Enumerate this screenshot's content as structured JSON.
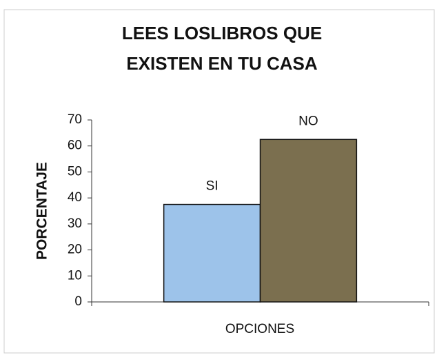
{
  "chart_data": {
    "type": "bar",
    "title": [
      "LEES LOSLIBROS QUE",
      "EXISTEN EN TU CASA"
    ],
    "y_label": "PORCENTAJE",
    "x_label": "OPCIONES",
    "categories": [
      "SI",
      "NO"
    ],
    "values": [
      37.5,
      62.5
    ],
    "colors": [
      "#9dc3ea",
      "#7b6f4f"
    ],
    "ylim": [
      0,
      70
    ],
    "yticks": [
      0,
      10,
      20,
      30,
      40,
      50,
      60,
      70
    ]
  }
}
